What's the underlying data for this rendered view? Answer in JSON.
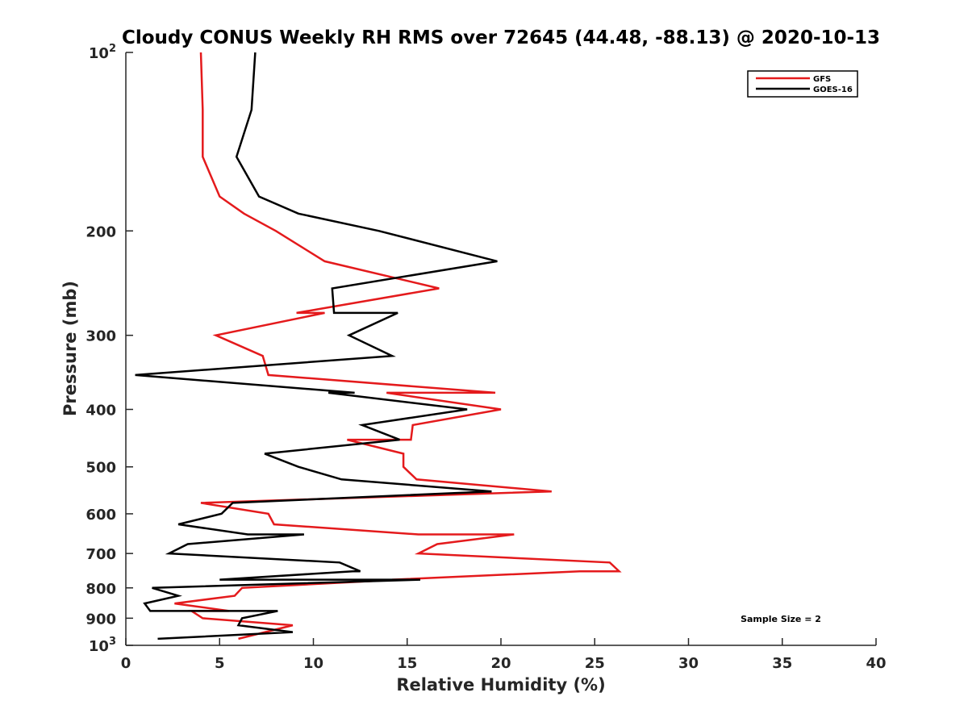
{
  "chart_data": {
    "type": "line",
    "title": "Cloudy CONUS Weekly RH RMS over 72645 (44.48, -88.13) @ 2020-10-13",
    "xlabel": "Relative Humidity (%)",
    "ylabel": "Pressure (mb)",
    "xlim": [
      0,
      40
    ],
    "ylim": [
      100,
      1000
    ],
    "y_scale": "log",
    "y_reversed": true,
    "grid": false,
    "legend_position": "top-right",
    "annotation": "Sample Size = 2",
    "x_ticks": [
      "0",
      "5",
      "10",
      "15",
      "20",
      "25",
      "30",
      "35",
      "40"
    ],
    "y_ticks": [
      {
        "value": 100,
        "label": "10",
        "sup": "2"
      },
      {
        "value": 200,
        "label": "200",
        "sup": ""
      },
      {
        "value": 300,
        "label": "300",
        "sup": ""
      },
      {
        "value": 400,
        "label": "400",
        "sup": ""
      },
      {
        "value": 500,
        "label": "500",
        "sup": ""
      },
      {
        "value": 600,
        "label": "600",
        "sup": ""
      },
      {
        "value": 700,
        "label": "700",
        "sup": ""
      },
      {
        "value": 800,
        "label": "800",
        "sup": ""
      },
      {
        "value": 900,
        "label": "900",
        "sup": ""
      },
      {
        "value": 1000,
        "label": "10",
        "sup": "3"
      }
    ],
    "series": [
      {
        "name": "GFS",
        "color": "#e41a1c",
        "points": [
          [
            4.0,
            100
          ],
          [
            4.1,
            125
          ],
          [
            4.1,
            150
          ],
          [
            5.0,
            175
          ],
          [
            6.3,
            187
          ],
          [
            8.0,
            200
          ],
          [
            10.6,
            225
          ],
          [
            16.7,
            250
          ],
          [
            9.1,
            275
          ],
          [
            10.6,
            275
          ],
          [
            4.8,
            300
          ],
          [
            7.3,
            325
          ],
          [
            7.6,
            350
          ],
          [
            19.7,
            375
          ],
          [
            13.9,
            375
          ],
          [
            20.0,
            400
          ],
          [
            15.3,
            425
          ],
          [
            15.2,
            450
          ],
          [
            11.8,
            450
          ],
          [
            14.8,
            475
          ],
          [
            14.8,
            500
          ],
          [
            15.5,
            525
          ],
          [
            22.7,
            550
          ],
          [
            4.0,
            575
          ],
          [
            7.6,
            600
          ],
          [
            7.9,
            625
          ],
          [
            15.6,
            650
          ],
          [
            20.7,
            650
          ],
          [
            16.6,
            675
          ],
          [
            15.6,
            700
          ],
          [
            25.8,
            725
          ],
          [
            26.3,
            750
          ],
          [
            24.2,
            750
          ],
          [
            14.2,
            775
          ],
          [
            14.5,
            775
          ],
          [
            6.2,
            800
          ],
          [
            5.8,
            825
          ],
          [
            2.6,
            850
          ],
          [
            5.5,
            875
          ],
          [
            3.5,
            875
          ],
          [
            4.1,
            900
          ],
          [
            8.9,
            925
          ],
          [
            6.0,
            975
          ]
        ]
      },
      {
        "name": "GOES-16",
        "color": "#000000",
        "points": [
          [
            6.9,
            100
          ],
          [
            6.7,
            125
          ],
          [
            5.9,
            150
          ],
          [
            7.1,
            175
          ],
          [
            9.2,
            187
          ],
          [
            13.5,
            200
          ],
          [
            19.8,
            225
          ],
          [
            11.0,
            250
          ],
          [
            11.1,
            275
          ],
          [
            14.5,
            275
          ],
          [
            11.9,
            300
          ],
          [
            14.2,
            325
          ],
          [
            0.5,
            350
          ],
          [
            12.2,
            375
          ],
          [
            10.8,
            375
          ],
          [
            18.2,
            400
          ],
          [
            12.6,
            425
          ],
          [
            14.6,
            450
          ],
          [
            7.4,
            475
          ],
          [
            9.2,
            500
          ],
          [
            11.5,
            525
          ],
          [
            19.5,
            550
          ],
          [
            5.7,
            575
          ],
          [
            5.1,
            600
          ],
          [
            2.8,
            625
          ],
          [
            6.5,
            650
          ],
          [
            9.5,
            650
          ],
          [
            3.3,
            675
          ],
          [
            2.3,
            700
          ],
          [
            11.4,
            725
          ],
          [
            12.5,
            750
          ],
          [
            12.1,
            750
          ],
          [
            5.0,
            775
          ],
          [
            15.7,
            775
          ],
          [
            1.4,
            800
          ],
          [
            2.8,
            825
          ],
          [
            1.0,
            850
          ],
          [
            1.3,
            875
          ],
          [
            8.1,
            875
          ],
          [
            6.2,
            900
          ],
          [
            6.0,
            925
          ],
          [
            8.9,
            950
          ],
          [
            1.7,
            975
          ]
        ]
      }
    ]
  }
}
